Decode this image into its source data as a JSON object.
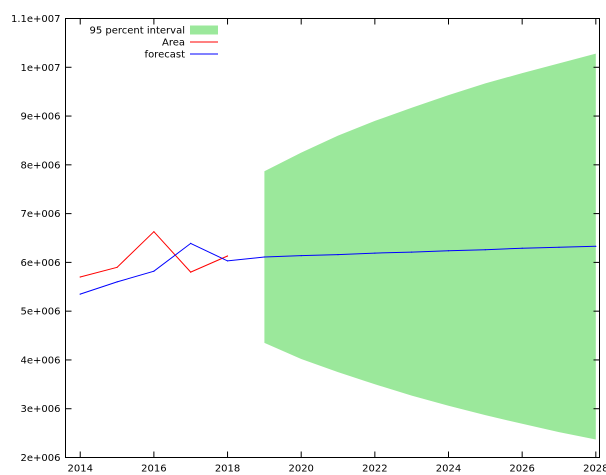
{
  "chart_data": {
    "type": "line",
    "title": "",
    "xlabel": "",
    "ylabel": "",
    "xlim": [
      2013.6,
      2028.1
    ],
    "ylim": [
      2000000,
      11000000
    ],
    "x_ticks": [
      2014,
      2016,
      2018,
      2020,
      2022,
      2024,
      2026,
      2028
    ],
    "x_tick_labels": [
      "2014",
      "2016",
      "2018",
      "2020",
      "2022",
      "2024",
      "2026",
      "2028"
    ],
    "y_ticks": [
      2000000,
      3000000,
      4000000,
      5000000,
      6000000,
      7000000,
      8000000,
      9000000,
      10000000,
      11000000
    ],
    "y_tick_labels": [
      "2e+006",
      "3e+006",
      "4e+006",
      "5e+006",
      "6e+006",
      "7e+006",
      "8e+006",
      "9e+006",
      "1e+007",
      "1.1e+007"
    ],
    "legend_position": "top-left",
    "grid": false,
    "interval": {
      "name": "95 percent interval",
      "color": "#9be89b",
      "x": [
        2019,
        2020,
        2021,
        2022,
        2023,
        2024,
        2025,
        2026,
        2027,
        2028
      ],
      "lower": [
        4350000,
        4020000,
        3750000,
        3500000,
        3270000,
        3060000,
        2870000,
        2690000,
        2520000,
        2370000
      ],
      "upper": [
        7870000,
        8250000,
        8600000,
        8900000,
        9170000,
        9430000,
        9670000,
        9880000,
        10080000,
        10280000
      ]
    },
    "series": [
      {
        "name": "Area",
        "color": "#ff0000",
        "x": [
          2014,
          2015,
          2016,
          2017,
          2018
        ],
        "y": [
          5700000,
          5900000,
          6630000,
          5800000,
          6130000
        ]
      },
      {
        "name": "forecast",
        "color": "#0000ff",
        "x": [
          2014,
          2015,
          2016,
          2017,
          2018,
          2019,
          2020,
          2021,
          2022,
          2023,
          2024,
          2025,
          2026,
          2027,
          2028
        ],
        "y": [
          5350000,
          5600000,
          5820000,
          6390000,
          6030000,
          6110000,
          6140000,
          6160000,
          6190000,
          6210000,
          6240000,
          6260000,
          6290000,
          6310000,
          6330000
        ]
      }
    ]
  }
}
